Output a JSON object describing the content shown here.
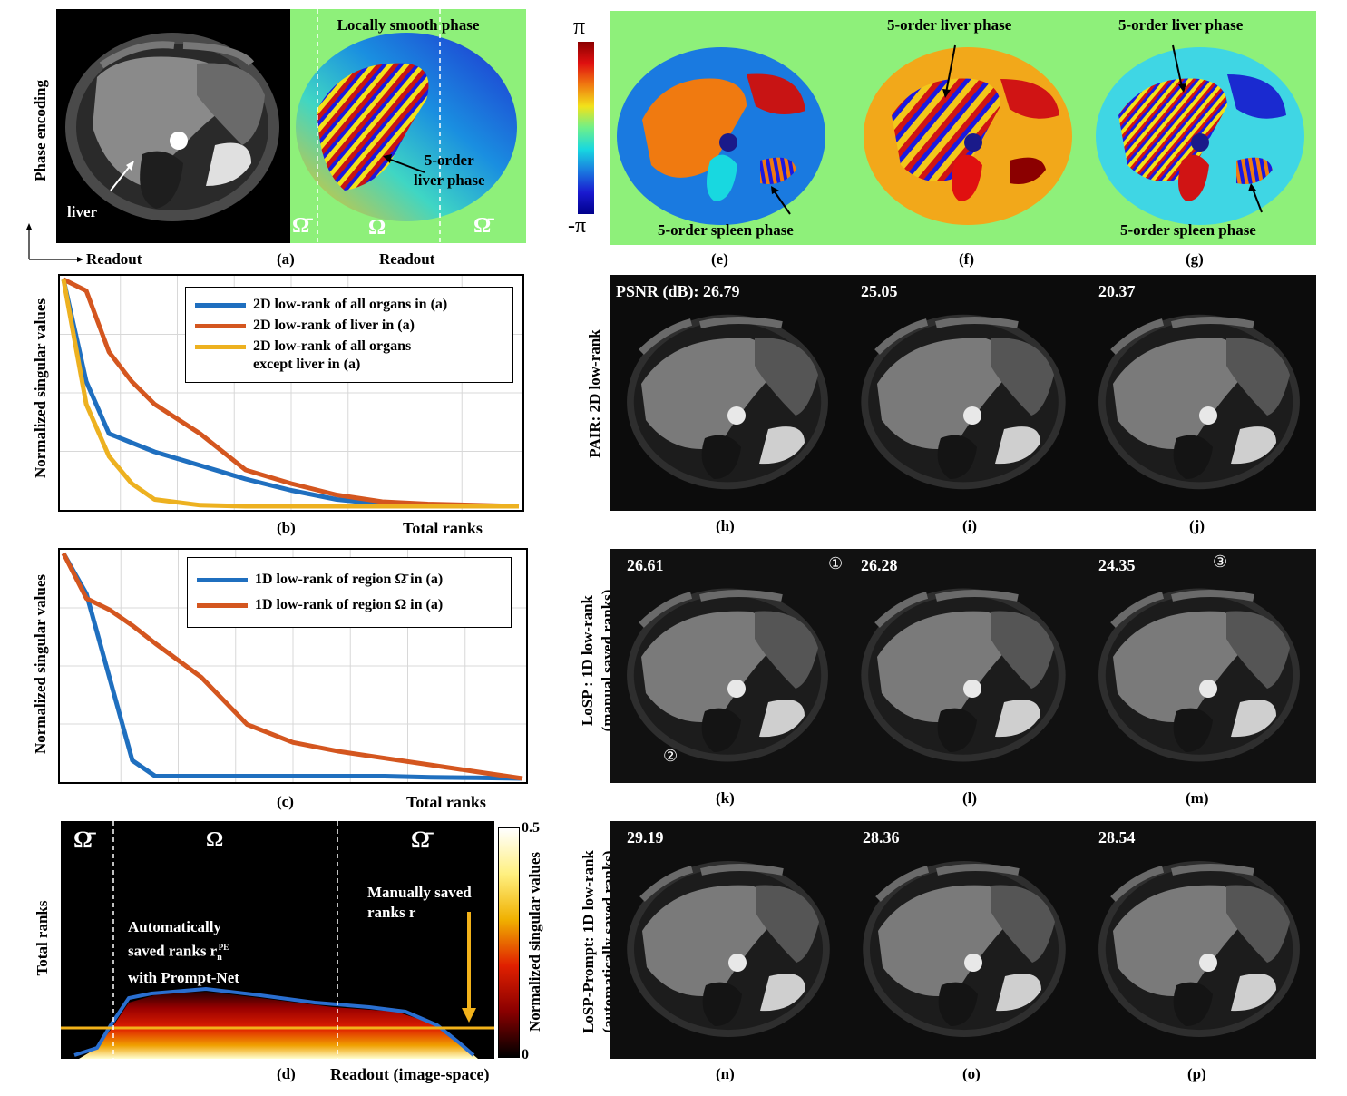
{
  "panel_a": {
    "y_axis": "Phase encoding",
    "x_axis": "Readout",
    "liver_label": "liver",
    "title": "Locally smooth phase",
    "liver_phase": [
      "5-order",
      "liver phase"
    ],
    "omega_bar": "Ω̄",
    "omega": "Ω",
    "readout": "Readout",
    "label": "(a)"
  },
  "colorbar_efg": {
    "top": "π",
    "bottom": "-π"
  },
  "panel_e": {
    "caption": "5-order spleen phase",
    "label": "(e)"
  },
  "panel_f": {
    "caption": "5-order liver phase",
    "label": "(f)"
  },
  "panel_g": {
    "caption_top": "5-order liver phase",
    "caption_bottom": "5-order spleen phase",
    "label": "(g)"
  },
  "panel_b": {
    "ylabel": "Normalized singular values",
    "xlabel": "Total ranks",
    "label": "(b)",
    "legend": [
      {
        "text": "2D low-rank of all organs in (a)",
        "color": "#1f6fbf"
      },
      {
        "text": "2D low-rank of liver in (a)",
        "color": "#d4561f"
      },
      {
        "text": "2D low-rank of all organs except liver in (a)",
        "color": "#edb120"
      }
    ]
  },
  "panel_c": {
    "ylabel": "Normalized singular values",
    "xlabel": "Total ranks",
    "label": "(c)",
    "legend": [
      {
        "text": "1D low-rank of region Ω̄ in (a)",
        "color": "#1f6fbf"
      },
      {
        "text": "1D low-rank of region Ω in (a)",
        "color": "#d4561f"
      }
    ]
  },
  "panel_d": {
    "ylabel": "Total ranks",
    "xlabel": "Readout (image-space)",
    "label": "(d)",
    "omega_bar": "Ω̄",
    "omega": "Ω",
    "manual": [
      "Manually saved",
      "ranks r"
    ],
    "auto": [
      "Automatically",
      "saved ranks r",
      "with Prompt-Net"
    ],
    "auto_sup": "PE",
    "auto_sub": "n",
    "cbar_top": "0.5",
    "cbar_bottom": "0",
    "cbar_label": "Normalized singular values"
  },
  "row_pair": {
    "side": "PAIR: 2D low-rank",
    "psnr": [
      "PSNR (dB): 26.79",
      "25.05",
      "20.37"
    ],
    "labels": [
      "(h)",
      "(i)",
      "(j)"
    ]
  },
  "row_losp": {
    "side": [
      "LoSP : 1D low-rank",
      "(manual saved ranks)"
    ],
    "psnr": [
      "26.61",
      "26.28",
      "24.35"
    ],
    "labels": [
      "(k)",
      "(l)",
      "(m)"
    ],
    "markers": [
      "①",
      "②",
      "③"
    ]
  },
  "row_prompt": {
    "side": [
      "LoSP-Prompt: 1D low-rank",
      "(automatically saved ranks)"
    ],
    "psnr": [
      "29.19",
      "28.36",
      "28.54"
    ],
    "labels": [
      "(n)",
      "(o)",
      "(p)"
    ]
  },
  "chart_data": [
    {
      "type": "line",
      "title": "(b)",
      "xlabel": "Total ranks",
      "ylabel": "Normalized singular values",
      "x": [
        0,
        0.05,
        0.1,
        0.15,
        0.2,
        0.3,
        0.4,
        0.5,
        0.6,
        0.7,
        0.8,
        1.0
      ],
      "ylim": [
        0,
        1
      ],
      "series": [
        {
          "name": "2D low-rank of all organs in (a)",
          "values": [
            1.0,
            0.55,
            0.32,
            0.28,
            0.24,
            0.18,
            0.12,
            0.07,
            0.03,
            0.01,
            0.005,
            0.0
          ]
        },
        {
          "name": "2D low-rank of liver in (a)",
          "values": [
            1.0,
            0.95,
            0.68,
            0.55,
            0.45,
            0.32,
            0.16,
            0.1,
            0.05,
            0.02,
            0.01,
            0.0
          ]
        },
        {
          "name": "2D low-rank of all organs except liver in (a)",
          "values": [
            1.0,
            0.45,
            0.22,
            0.1,
            0.03,
            0.005,
            0.0,
            0.0,
            0.0,
            0.0,
            0.0,
            0.0
          ]
        }
      ]
    },
    {
      "type": "line",
      "title": "(c)",
      "xlabel": "Total ranks",
      "ylabel": "Normalized singular values",
      "x": [
        0,
        0.05,
        0.1,
        0.15,
        0.2,
        0.3,
        0.4,
        0.5,
        0.6,
        0.7,
        0.8,
        0.9,
        1.0
      ],
      "ylim": [
        0,
        1
      ],
      "series": [
        {
          "name": "1D low-rank of region Ω̄ in (a)",
          "values": [
            1.0,
            0.82,
            0.45,
            0.08,
            0.01,
            0.01,
            0.01,
            0.01,
            0.01,
            0.01,
            0.005,
            0.003,
            0.0
          ]
        },
        {
          "name": "1D low-rank of region Ω in (a)",
          "values": [
            1.0,
            0.8,
            0.75,
            0.68,
            0.6,
            0.45,
            0.24,
            0.16,
            0.12,
            0.09,
            0.06,
            0.03,
            0.0
          ]
        }
      ]
    }
  ]
}
